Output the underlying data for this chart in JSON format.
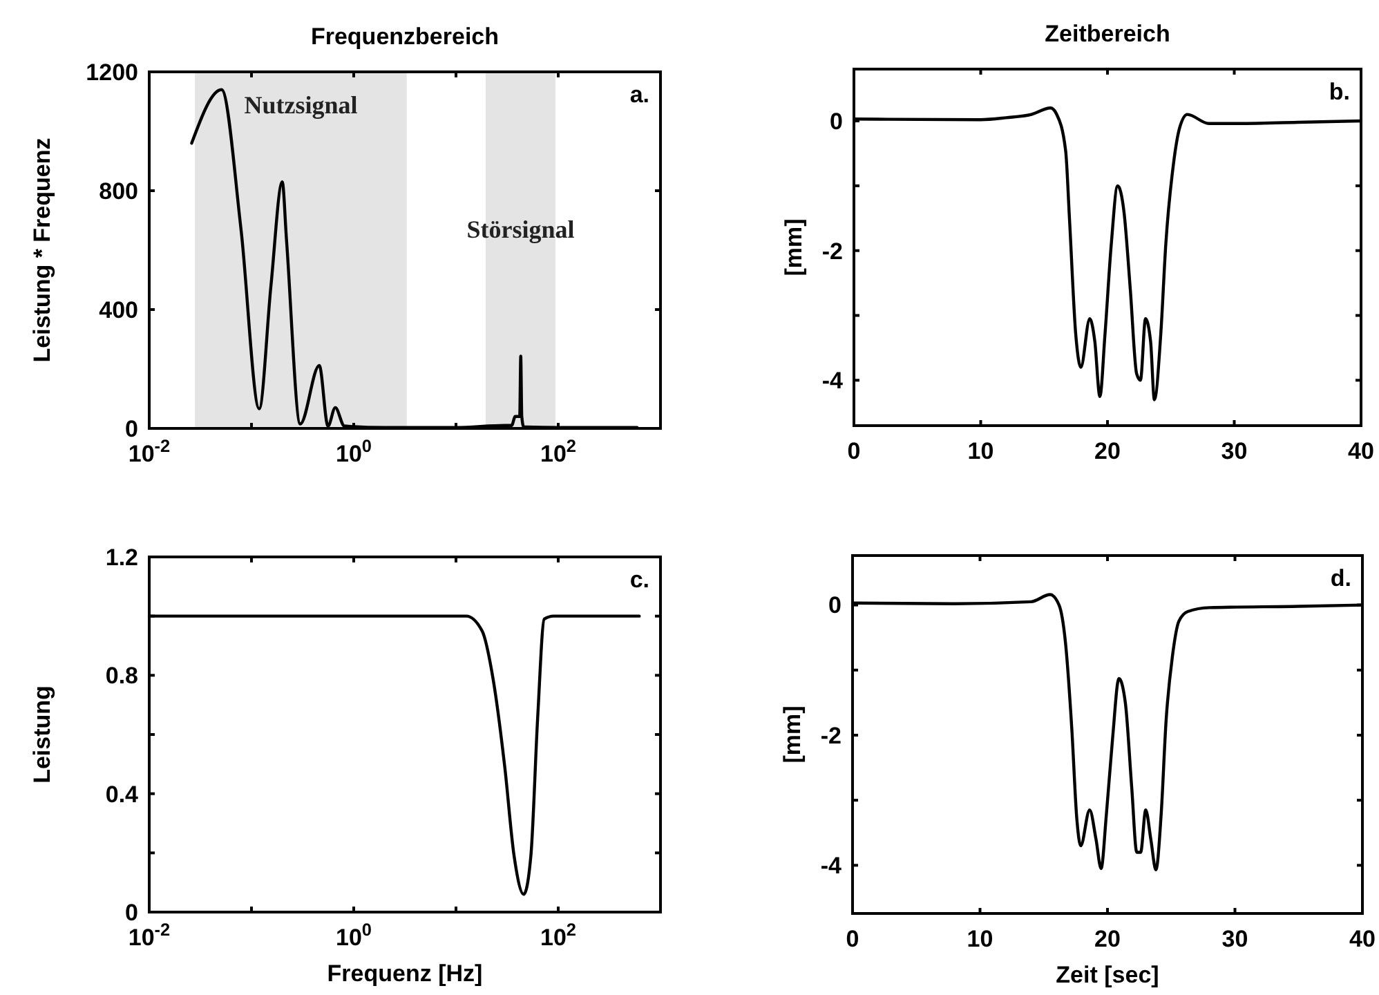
{
  "chart_data": [
    {
      "type": "line",
      "title": "Frequenzbereich",
      "ylabel": "Leistung * Frequenz",
      "log": "x",
      "grid": false,
      "line_style": "solid",
      "xlim": [
        0.01,
        1000
      ],
      "xticks": [
        {
          "value": 0.01,
          "label": "10$^{-2}$"
        },
        {
          "value": 0.1,
          "label": null
        },
        {
          "value": 1,
          "label": "10$^{0}$"
        },
        {
          "value": 10,
          "label": null
        },
        {
          "value": 100,
          "label": "10$^{2}$"
        }
      ],
      "ylim": [
        0,
        1200
      ],
      "yticks": [
        0,
        400,
        800,
        1200
      ],
      "bands": [
        {
          "axis": "x",
          "from": 0.028,
          "to": 3.3,
          "label": "Nutzsignal",
          "color": "#e4e4e4"
        },
        {
          "axis": "x",
          "from": 19.5,
          "to": 94,
          "label": "Störsignal",
          "color": "#e4e4e4"
        }
      ],
      "annotations": [
        "a."
      ],
      "series": [
        {
          "color": "#000000",
          "x": [
            0.026,
            0.051,
            0.079,
            0.119,
            0.155,
            0.2,
            0.22,
            0.3,
            0.46,
            0.56,
            0.66,
            0.81,
            2,
            10,
            30,
            35,
            38,
            42,
            43,
            44,
            46,
            100,
            590
          ],
          "values": [
            960,
            1140,
            670,
            66,
            480,
            830,
            635,
            15,
            212,
            8,
            70,
            8,
            3,
            3,
            10,
            10,
            40,
            40,
            243,
            40,
            5,
            3,
            3
          ]
        }
      ]
    },
    {
      "type": "line",
      "title": "Zeitbereich",
      "ylabel": "[mm]",
      "grid": false,
      "line_style": "solid",
      "xlim": [
        0,
        40
      ],
      "xticks": [
        0,
        10,
        20,
        30,
        40
      ],
      "ylim": [
        -4.7,
        0.8
      ],
      "yticks": [
        {
          "value": -4,
          "label": "-4"
        },
        {
          "value": -3,
          "label": null
        },
        {
          "value": -2,
          "label": "-2"
        },
        {
          "value": -1,
          "label": null
        },
        0
      ],
      "annotations": [
        "b."
      ],
      "series": [
        {
          "color": "#000000",
          "x": [
            0,
            10,
            12,
            14,
            15.5,
            16,
            16.7,
            17,
            17.5,
            17.9,
            18.6,
            19,
            19.4,
            19.8,
            20.3,
            20.8,
            21.3,
            21.8,
            22.3,
            22.6,
            23,
            23.4,
            23.7,
            24.2,
            24.6,
            25.2,
            25.7,
            26.3,
            28,
            30,
            35,
            40
          ],
          "values": [
            0.03,
            0.02,
            0.05,
            0.1,
            0.2,
            0.1,
            -0.46,
            -1.5,
            -3.3,
            -3.8,
            -3.05,
            -3.4,
            -4.25,
            -3.3,
            -1.9,
            -1,
            -1.4,
            -2.6,
            -3.9,
            -4,
            -3.05,
            -3.4,
            -4.3,
            -3.3,
            -1.9,
            -0.67,
            -0.1,
            0.1,
            -0.04,
            -0.04,
            -0.02,
            0
          ]
        }
      ]
    },
    {
      "type": "line",
      "xlabel": "Frequenz [Hz]",
      "ylabel": "Leistung",
      "log": "x",
      "grid": false,
      "line_style": "solid",
      "xlim": [
        0.01,
        1000
      ],
      "xticks": [
        {
          "value": 0.01,
          "label": "10$^{-2}$"
        },
        {
          "value": 0.1,
          "label": null
        },
        {
          "value": 1,
          "label": "10$^{0}$"
        },
        {
          "value": 10,
          "label": null
        },
        {
          "value": 100,
          "label": "10$^{2}$"
        }
      ],
      "ylim": [
        0,
        1.2
      ],
      "yticks": [
        0,
        {
          "value": 0.2,
          "label": null
        },
        0.4,
        {
          "value": 0.6,
          "label": null
        },
        0.8,
        {
          "value": 1,
          "label": null
        },
        1.2
      ],
      "annotations": [
        "c."
      ],
      "series": [
        {
          "color": "#000000",
          "x": [
            0.01,
            12.6,
            18,
            23,
            30,
            37,
            46,
            54,
            63,
            73,
            90,
            620
          ],
          "values": [
            1,
            1,
            0.95,
            0.79,
            0.49,
            0.19,
            0.06,
            0.19,
            0.66,
            0.99,
            1,
            1
          ]
        }
      ]
    },
    {
      "type": "line",
      "xlabel": "Zeit [sec]",
      "ylabel": "[mm]",
      "grid": false,
      "line_style": "solid",
      "xlim": [
        0,
        40
      ],
      "xticks": [
        0,
        10,
        20,
        30,
        40
      ],
      "ylim": [
        -4.74,
        0.76
      ],
      "yticks": [
        {
          "value": -4,
          "label": "-4"
        },
        {
          "value": -3,
          "label": null
        },
        {
          "value": -2,
          "label": "-2"
        },
        {
          "value": -1,
          "label": null
        },
        0
      ],
      "annotations": [
        "d."
      ],
      "series": [
        {
          "color": "#000000",
          "x": [
            0,
            8,
            14,
            15.5,
            16.2,
            16.7,
            17.2,
            17.6,
            17.9,
            18.6,
            19.1,
            19.5,
            19.9,
            20.4,
            20.9,
            21.4,
            21.9,
            22.3,
            22.6,
            23,
            23.4,
            23.8,
            24.2,
            24.6,
            25.1,
            25.6,
            26.3,
            28,
            35,
            40
          ],
          "values": [
            0.03,
            0.02,
            0.05,
            0.16,
            0,
            -0.57,
            -1.9,
            -3.3,
            -3.7,
            -3.15,
            -3.6,
            -4.05,
            -3.25,
            -2.05,
            -1.13,
            -1.5,
            -2.8,
            -3.8,
            -3.8,
            -3.15,
            -3.6,
            -4.07,
            -3.25,
            -1.77,
            -0.78,
            -0.25,
            -0.1,
            -0.04,
            -0.02,
            0
          ]
        }
      ]
    }
  ]
}
